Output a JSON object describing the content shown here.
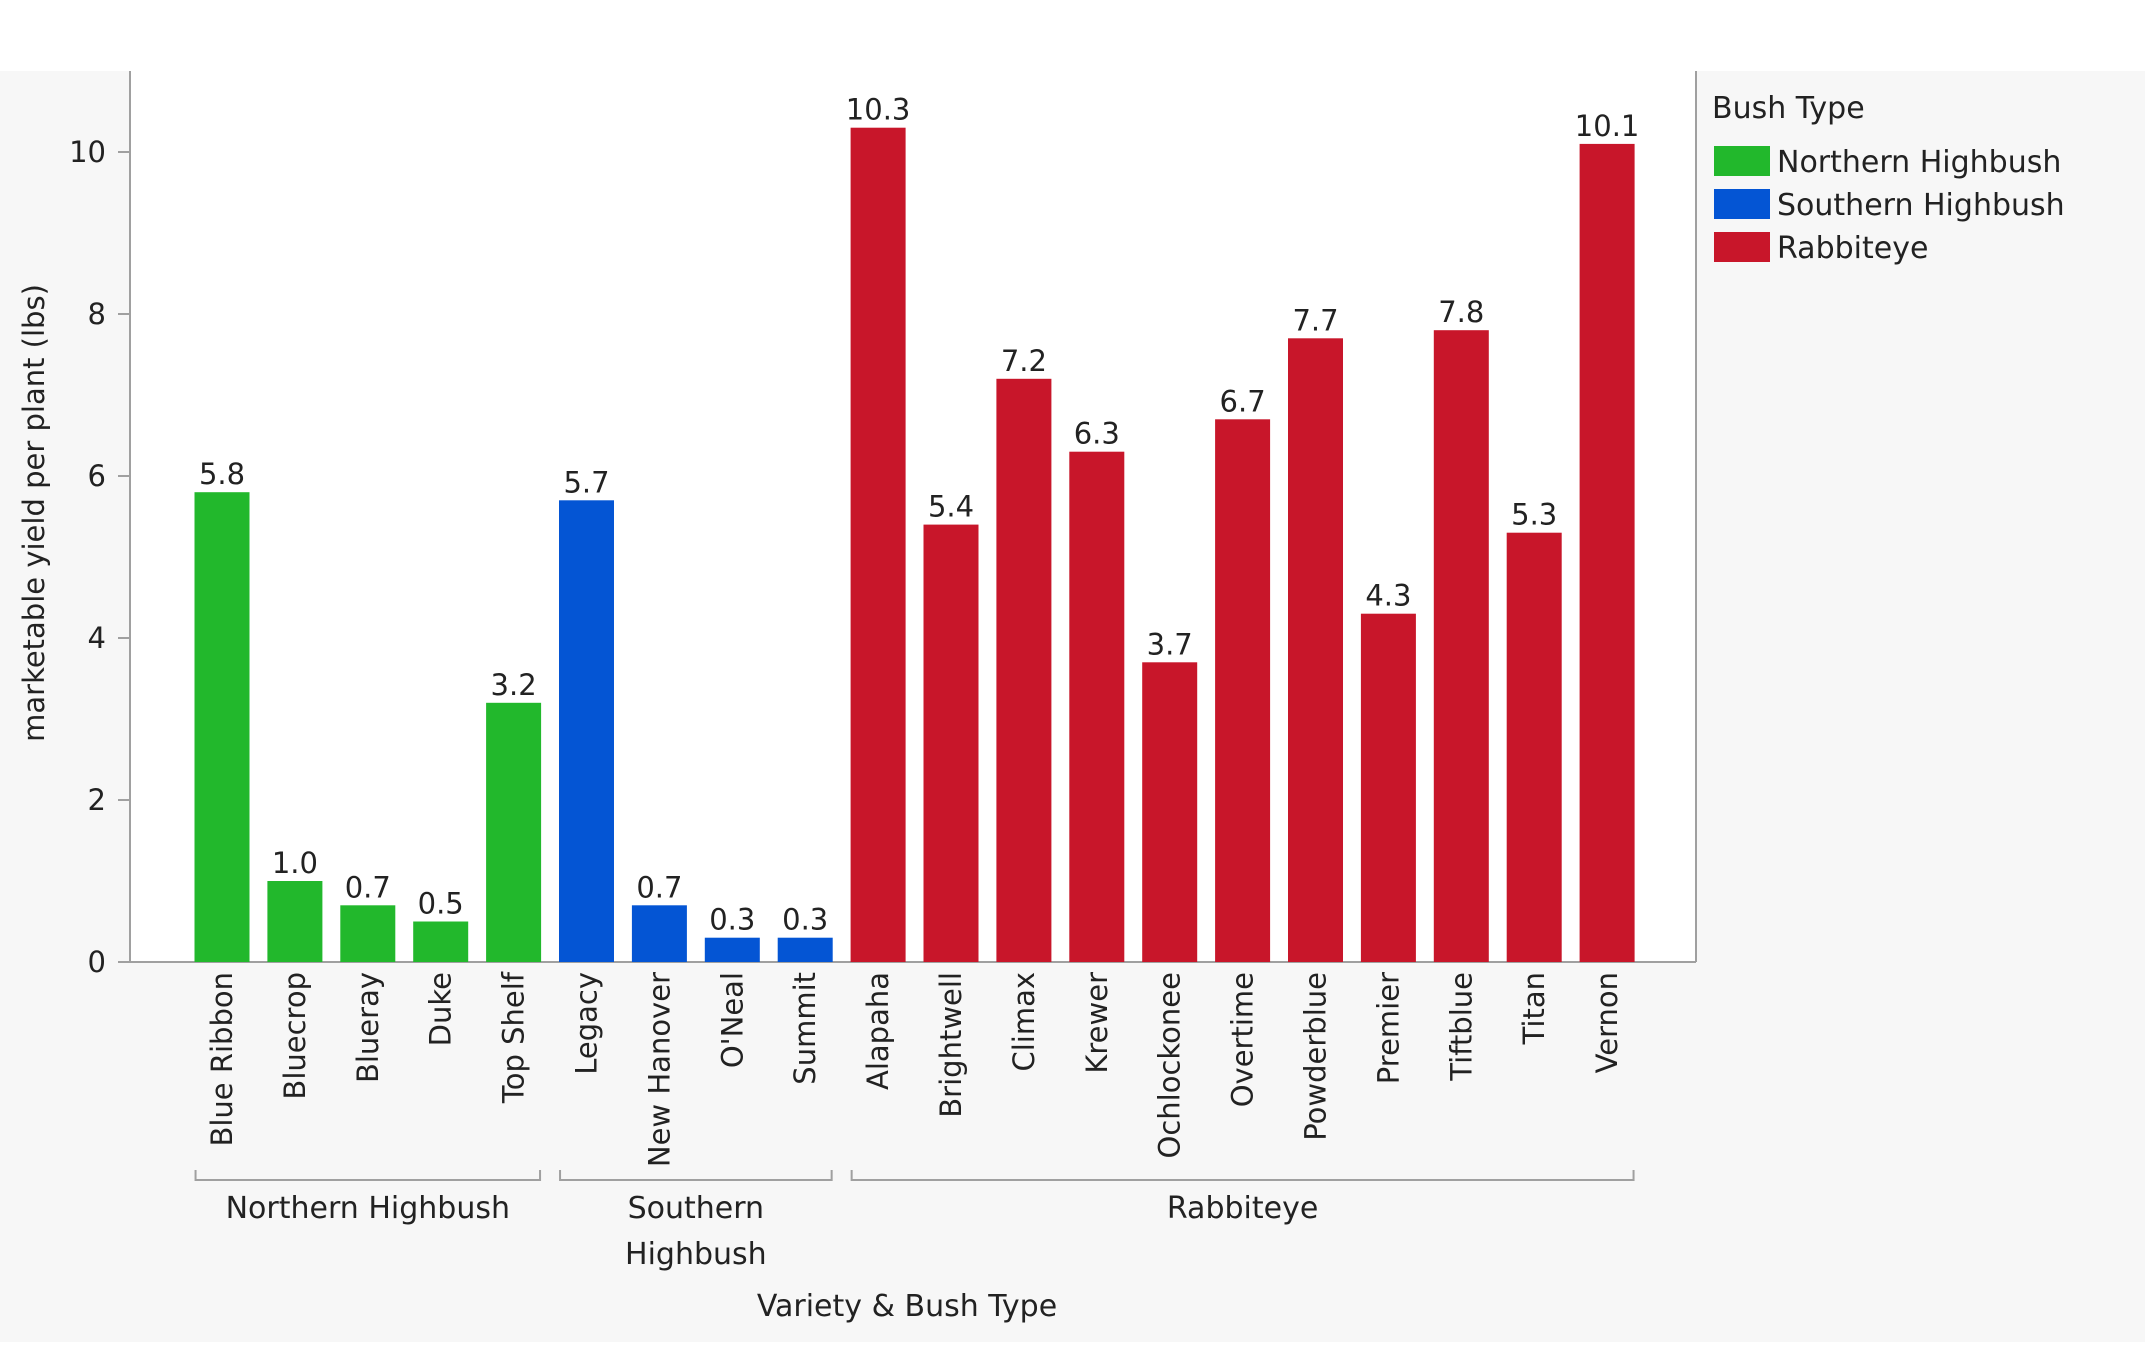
{
  "chart_data": {
    "type": "bar",
    "xlabel": "Variety & Bush Type",
    "ylabel": "marketable yield per plant (lbs)",
    "ylim": [
      0,
      11
    ],
    "yticks": [
      0,
      2,
      4,
      6,
      8,
      10
    ],
    "grid": false,
    "legend": {
      "title": "Bush Type",
      "placement": "right",
      "entries": [
        {
          "name": "Northern Highbush",
          "color": "#22b82c"
        },
        {
          "name": "Southern Highbush",
          "color": "#0455d4"
        },
        {
          "name": "Rabbiteye",
          "color": "#c8162a"
        }
      ]
    },
    "groups": [
      {
        "name": "Northern Highbush",
        "label_lines": [
          "Northern Highbush"
        ],
        "color": "#22b82c",
        "categories": [
          "Blue Ribbon",
          "Bluecrop",
          "Blueray",
          "Duke",
          "Top Shelf"
        ],
        "values": [
          5.8,
          1.0,
          0.7,
          0.5,
          3.2
        ]
      },
      {
        "name": "Southern Highbush",
        "label_lines": [
          "Southern",
          "Highbush"
        ],
        "color": "#0455d4",
        "categories": [
          "Legacy",
          "New Hanover",
          "O'Neal",
          "Summit"
        ],
        "values": [
          5.7,
          0.7,
          0.3,
          0.3
        ]
      },
      {
        "name": "Rabbiteye",
        "label_lines": [
          "Rabbiteye"
        ],
        "color": "#c8162a",
        "categories": [
          "Alapaha",
          "Brightwell",
          "Climax",
          "Krewer",
          "Ochlockonee",
          "Overtime",
          "Powderblue",
          "Premier",
          "Tiftblue",
          "Titan",
          "Vernon"
        ],
        "values": [
          10.3,
          5.4,
          7.2,
          6.3,
          3.7,
          6.7,
          7.7,
          4.3,
          7.8,
          5.3,
          10.1
        ]
      }
    ]
  }
}
